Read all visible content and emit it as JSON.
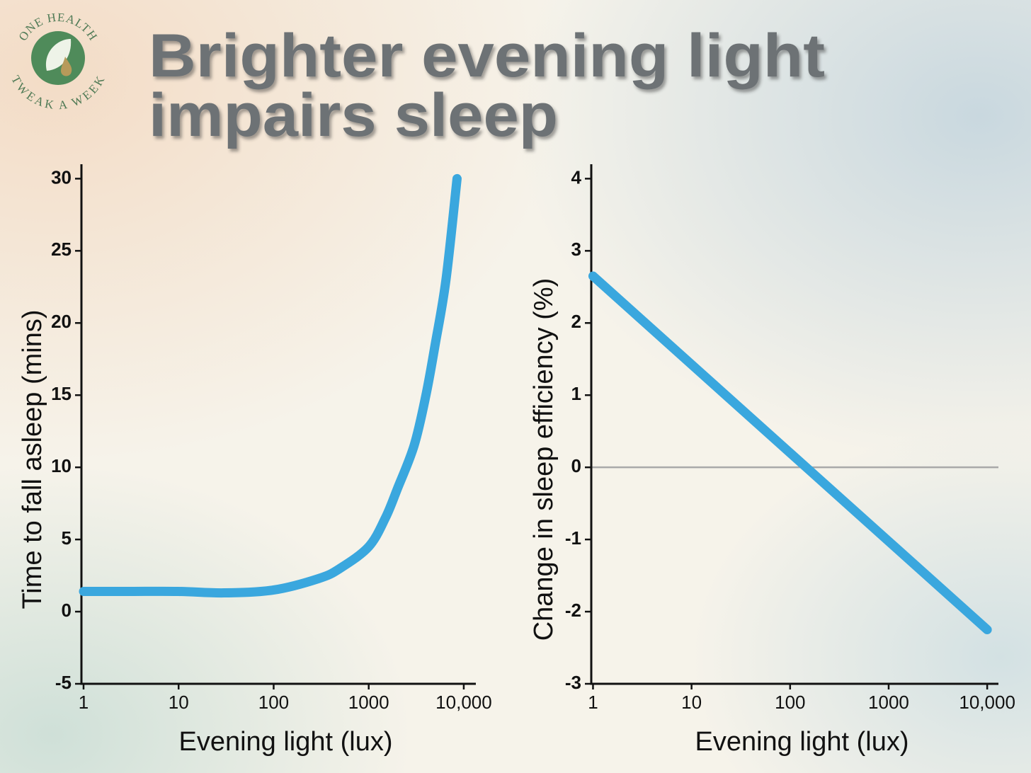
{
  "title": [
    "Brighter evening light",
    "impairs sleep"
  ],
  "logo": {
    "top": "ONE HEALTH",
    "bottom": "TWEAK A WEEK"
  },
  "chart_data": [
    {
      "type": "line",
      "x_label": "Evening light (lux)",
      "y_label": "Time to fall asleep (mins)",
      "x": [
        1,
        3,
        10,
        30,
        100,
        300,
        500,
        1000,
        1500,
        2000,
        3000,
        4000,
        5000,
        6500,
        8500
      ],
      "values": [
        1.4,
        1.4,
        1.4,
        1.3,
        1.5,
        2.3,
        3,
        4.5,
        6.5,
        8.5,
        11.5,
        15,
        18.5,
        23,
        30
      ],
      "color": "#3aa7de",
      "x_log": true,
      "xlim": [
        0.95,
        13400
      ],
      "xticks": [
        1,
        10,
        100,
        1000,
        {
          "value": 10000,
          "label": "10,000"
        }
      ],
      "ylim": [
        -5,
        31
      ],
      "yticks": [
        -5,
        0,
        5,
        10,
        15,
        20,
        25,
        30
      ]
    },
    {
      "type": "line",
      "x_label": "Evening light (lux)",
      "y_label": "Change in sleep efficiency (%)",
      "x": [
        1,
        10000
      ],
      "values": [
        2.65,
        -2.25
      ],
      "color": "#3aa7de",
      "x_log": true,
      "zero_line": true,
      "xlim": [
        0.96,
        13000
      ],
      "xticks": [
        1,
        10,
        100,
        1000,
        {
          "value": 10000,
          "label": "10,000"
        }
      ],
      "ylim": [
        -3,
        4.2
      ],
      "yticks": [
        -3,
        -2,
        -1,
        0,
        1,
        2,
        3,
        4
      ]
    }
  ]
}
